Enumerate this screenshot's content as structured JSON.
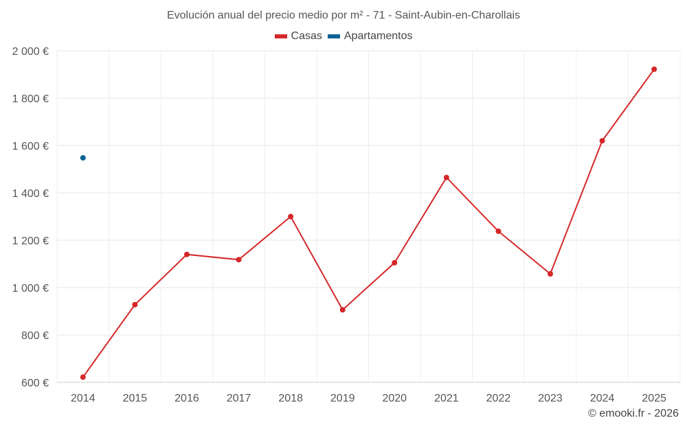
{
  "chart_data": {
    "type": "line",
    "title": "Evolución anual del precio medio por m² - 71 - Saint-Aubin-en-Charollais",
    "categories": [
      "2014",
      "2015",
      "2016",
      "2017",
      "2018",
      "2019",
      "2020",
      "2021",
      "2022",
      "2023",
      "2024",
      "2025"
    ],
    "series": [
      {
        "name": "Casas",
        "color": "#d62728",
        "values": [
          622,
          928,
          1140,
          1118,
          1300,
          906,
          1105,
          1465,
          1238,
          1058,
          1620,
          1922
        ]
      },
      {
        "name": "Apartamentos",
        "color": "#0b6394",
        "values": [
          1548,
          null,
          null,
          null,
          null,
          null,
          null,
          null,
          null,
          null,
          null,
          null
        ]
      }
    ],
    "ylim": [
      600,
      2000
    ],
    "yticks": [
      600,
      800,
      1000,
      1200,
      1400,
      1600,
      1800,
      2000
    ],
    "ytick_labels": [
      "600 €",
      "800 €",
      "1 000 €",
      "1 200 €",
      "1 400 €",
      "1 600 €",
      "1 800 €",
      "2 000 €"
    ],
    "grid": true,
    "legend_position": "top-center"
  },
  "credit": "© emooki.fr - 2026"
}
